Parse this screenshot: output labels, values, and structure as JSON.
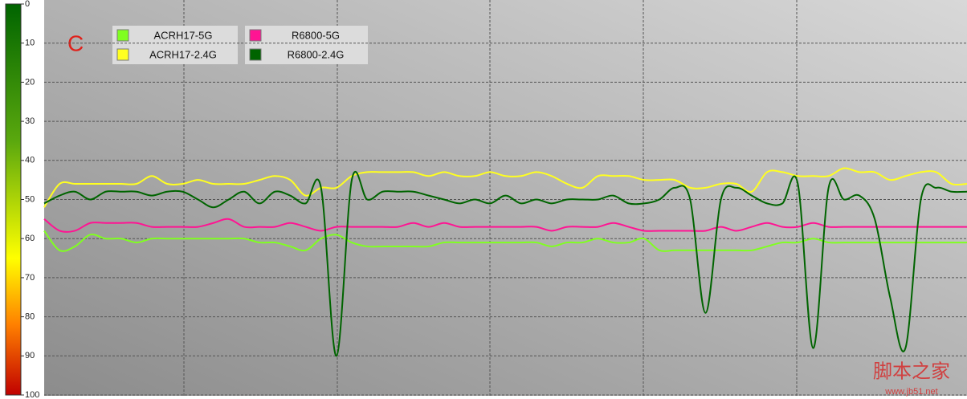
{
  "chart_data": {
    "type": "line",
    "annotation": "C",
    "categories": [
      null,
      null,
      null,
      null,
      null,
      null,
      null,
      null,
      null,
      null,
      null,
      null,
      null,
      null,
      null,
      null,
      null,
      null,
      null,
      null,
      null,
      null,
      null,
      null,
      null,
      null,
      null,
      null,
      null,
      null,
      null,
      null,
      null,
      null,
      null,
      null,
      null,
      null,
      null,
      null,
      null,
      null,
      null,
      null,
      null,
      null,
      null,
      null,
      null,
      null,
      null,
      null,
      null,
      null,
      null,
      null,
      null,
      null,
      null,
      null,
      null
    ],
    "series": [
      {
        "name": "ACRH17-5G",
        "color": "#80ff20",
        "values": [
          58,
          63,
          62,
          59,
          60,
          60,
          61,
          60,
          60,
          60,
          60,
          60,
          60,
          60,
          61,
          61,
          62,
          63,
          60,
          59,
          61,
          62,
          62,
          62,
          62,
          62,
          61,
          61,
          61,
          61,
          61,
          61,
          61,
          62,
          61,
          61,
          60,
          61,
          61,
          60,
          63,
          63,
          63,
          63,
          63,
          63,
          63,
          62,
          61,
          61,
          60,
          61,
          61,
          61,
          61,
          61,
          61,
          61,
          61,
          61,
          61
        ]
      },
      {
        "name": "ACRH17-2.4G",
        "color": "#ffff20",
        "values": [
          52,
          46,
          46,
          46,
          46,
          46,
          46,
          44,
          46,
          46,
          45,
          46,
          46,
          46,
          45,
          44,
          45,
          49,
          47,
          47,
          44,
          43,
          43,
          43,
          43,
          44,
          43,
          44,
          44,
          43,
          44,
          44,
          43,
          44,
          46,
          47,
          44,
          44,
          44,
          45,
          45,
          45,
          47,
          47,
          46,
          46,
          48,
          43,
          43,
          44,
          44,
          44,
          42,
          43,
          43,
          45,
          44,
          43,
          43,
          46,
          46
        ]
      },
      {
        "name": "R6800-5G",
        "color": "#ff1493",
        "values": [
          55,
          58,
          58,
          56,
          56,
          56,
          56,
          57,
          57,
          57,
          57,
          56,
          55,
          57,
          57,
          57,
          56,
          57,
          58,
          57,
          57,
          57,
          57,
          57,
          56,
          57,
          56,
          57,
          57,
          57,
          57,
          57,
          57,
          58,
          57,
          57,
          57,
          56,
          57,
          58,
          58,
          58,
          58,
          58,
          57,
          58,
          57,
          56,
          57,
          57,
          56,
          57,
          57,
          57,
          57,
          57,
          57,
          57,
          57,
          57,
          57
        ]
      },
      {
        "name": "R6800-2.4G",
        "color": "#006400",
        "values": [
          51,
          49,
          48,
          50,
          48,
          48,
          48,
          49,
          48,
          48,
          50,
          52,
          50,
          48,
          51,
          48,
          49,
          51,
          47,
          90,
          45,
          50,
          48,
          48,
          48,
          49,
          50,
          51,
          50,
          51,
          49,
          51,
          50,
          51,
          50,
          50,
          50,
          49,
          51,
          51,
          50,
          47,
          50,
          79,
          50,
          47,
          49,
          51,
          51,
          46,
          88,
          47,
          50,
          49,
          55,
          75,
          88,
          50,
          47,
          48,
          48
        ]
      }
    ],
    "ylim": [
      0,
      100
    ],
    "yticks": [
      0,
      10,
      20,
      30,
      40,
      50,
      60,
      70,
      80,
      90,
      100
    ],
    "y_inverted": true,
    "grid": true,
    "watermark": {
      "name": "脚本之家",
      "url": "www.jb51.net"
    }
  }
}
